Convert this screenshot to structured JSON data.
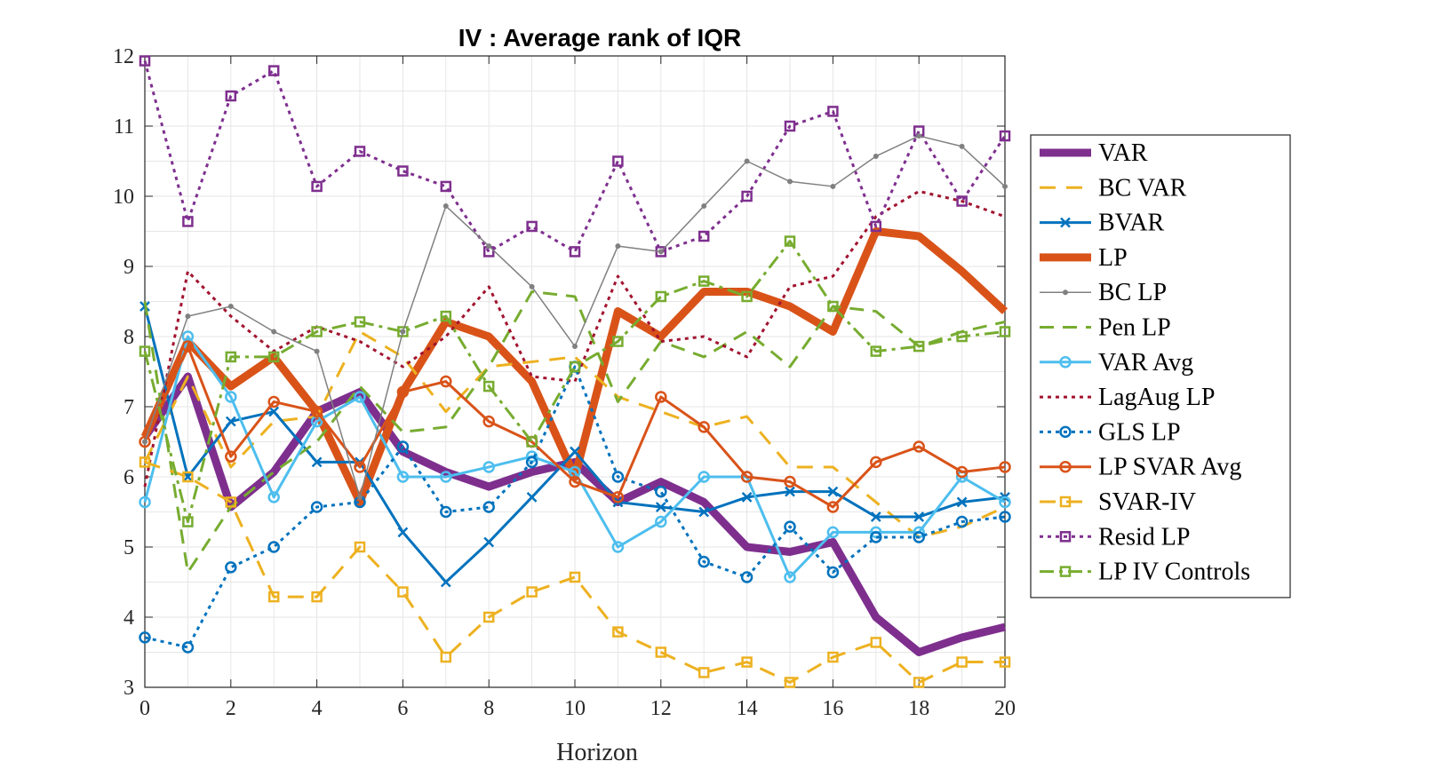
{
  "chart_data": {
    "type": "line",
    "title": "IV : Average rank of IQR",
    "xlabel": "Horizon",
    "ylabel": "",
    "xlim": [
      0,
      20
    ],
    "ylim": [
      3,
      12
    ],
    "xticks": [
      0,
      2,
      4,
      6,
      8,
      10,
      12,
      14,
      16,
      18,
      20
    ],
    "yticks": [
      3,
      4,
      5,
      6,
      7,
      8,
      9,
      10,
      11,
      12
    ],
    "grid": true,
    "legend_position": "outside-right",
    "x": [
      0,
      1,
      2,
      3,
      4,
      5,
      6,
      7,
      8,
      9,
      10,
      11,
      12,
      13,
      14,
      15,
      16,
      17,
      18,
      19,
      20
    ],
    "series": [
      {
        "name": "VAR",
        "color": "#7E2F8E",
        "width": 9,
        "dash": "",
        "marker": "none",
        "values": [
          6.57,
          7.43,
          5.57,
          6.07,
          6.93,
          7.21,
          6.36,
          6.07,
          5.86,
          6.07,
          6.21,
          5.64,
          5.93,
          5.64,
          5.0,
          4.93,
          5.07,
          4.0,
          3.5,
          3.71,
          3.86
        ]
      },
      {
        "name": "BC VAR",
        "color": "#EDB120",
        "width": 3,
        "dash": "18,12",
        "marker": "none",
        "values": [
          6.21,
          7.43,
          6.14,
          6.79,
          6.86,
          8.07,
          7.71,
          6.93,
          7.57,
          7.64,
          7.71,
          7.14,
          6.93,
          6.71,
          6.86,
          6.14,
          6.14,
          5.64,
          5.14,
          5.29,
          5.57
        ]
      },
      {
        "name": "BVAR",
        "color": "#0072BD",
        "width": 3,
        "dash": "",
        "marker": "x",
        "values": [
          8.43,
          6.0,
          6.79,
          6.93,
          6.21,
          6.21,
          5.21,
          4.5,
          5.07,
          5.71,
          6.36,
          5.64,
          5.57,
          5.5,
          5.71,
          5.79,
          5.79,
          5.43,
          5.43,
          5.64,
          5.71
        ]
      },
      {
        "name": "LP",
        "color": "#D95319",
        "width": 9,
        "dash": "",
        "marker": "none",
        "values": [
          6.57,
          7.93,
          7.29,
          7.71,
          6.93,
          5.64,
          7.21,
          8.21,
          8.0,
          7.36,
          6.0,
          8.36,
          8.0,
          8.64,
          8.64,
          8.43,
          8.07,
          9.5,
          9.43,
          8.93,
          8.36
        ]
      },
      {
        "name": "BC LP",
        "color": "#808080",
        "width": 1.5,
        "dash": "",
        "marker": "dot",
        "values": [
          6.5,
          8.29,
          8.43,
          8.07,
          7.79,
          5.71,
          8.07,
          9.86,
          9.29,
          8.71,
          7.86,
          9.29,
          9.21,
          9.86,
          10.5,
          10.21,
          10.14,
          10.57,
          10.86,
          10.71,
          10.14
        ]
      },
      {
        "name": "Pen LP",
        "color": "#77AC30",
        "width": 3,
        "dash": "16,10",
        "marker": "none",
        "values": [
          8.5,
          4.64,
          5.57,
          6.07,
          6.5,
          7.29,
          6.64,
          6.71,
          7.57,
          8.64,
          8.57,
          7.07,
          7.93,
          7.71,
          8.07,
          7.57,
          8.43,
          8.36,
          7.86,
          8.07,
          8.21
        ]
      },
      {
        "name": "VAR Avg",
        "color": "#4DBEEE",
        "width": 3,
        "dash": "",
        "marker": "o",
        "values": [
          5.64,
          8.0,
          7.14,
          5.71,
          6.79,
          7.14,
          6.0,
          6.0,
          6.14,
          6.29,
          6.07,
          5.0,
          5.36,
          6.0,
          6.0,
          4.57,
          5.21,
          5.21,
          5.21,
          6.0,
          5.64
        ]
      },
      {
        "name": "LagAug LP",
        "color": "#A2142F",
        "width": 3,
        "dash": "4,5",
        "marker": "none",
        "values": [
          5.86,
          8.93,
          8.29,
          7.79,
          8.14,
          7.93,
          7.57,
          8.0,
          8.71,
          7.43,
          7.36,
          8.86,
          7.93,
          8.0,
          7.71,
          8.71,
          8.86,
          9.71,
          10.07,
          9.93,
          9.71
        ]
      },
      {
        "name": "GLS LP",
        "color": "#0072BD",
        "width": 3,
        "dash": "4,5",
        "marker": "o",
        "values": [
          3.71,
          3.57,
          4.71,
          5.0,
          5.57,
          5.64,
          6.43,
          5.5,
          5.57,
          6.21,
          7.57,
          6.0,
          5.79,
          4.79,
          4.57,
          5.29,
          4.64,
          5.14,
          5.14,
          5.36,
          5.43
        ]
      },
      {
        "name": "LP SVAR Avg",
        "color": "#D95319",
        "width": 3,
        "dash": "",
        "marker": "o",
        "values": [
          6.5,
          7.86,
          6.29,
          7.07,
          6.93,
          6.14,
          7.21,
          7.36,
          6.79,
          6.5,
          5.93,
          5.71,
          7.14,
          6.71,
          6.0,
          5.93,
          5.57,
          6.21,
          6.43,
          6.07,
          6.14
        ]
      },
      {
        "name": "SVAR-IV",
        "color": "#EDB120",
        "width": 3,
        "dash": "18,12",
        "marker": "s",
        "values": [
          6.21,
          6.0,
          5.64,
          4.29,
          4.29,
          5.0,
          4.36,
          3.43,
          4.0,
          4.36,
          4.57,
          3.79,
          3.5,
          3.21,
          3.36,
          3.07,
          3.43,
          3.64,
          3.07,
          3.36,
          3.36
        ]
      },
      {
        "name": "Resid LP",
        "color": "#7E2F8E",
        "width": 3,
        "dash": "4,5",
        "marker": "s",
        "values": [
          11.93,
          9.64,
          11.43,
          11.79,
          10.14,
          10.64,
          10.36,
          10.14,
          9.21,
          9.57,
          9.21,
          10.5,
          9.21,
          9.43,
          10.0,
          11.0,
          11.21,
          9.57,
          10.93,
          9.93,
          10.86
        ]
      },
      {
        "name": "LP IV Controls",
        "color": "#77AC30",
        "width": 3,
        "dash": "16,6,4,6",
        "marker": "s",
        "values": [
          7.79,
          5.36,
          7.71,
          7.71,
          8.07,
          8.21,
          8.07,
          8.29,
          7.29,
          6.5,
          7.57,
          7.93,
          8.57,
          8.79,
          8.57,
          9.36,
          8.43,
          7.79,
          7.86,
          8.0,
          8.07
        ]
      }
    ]
  }
}
